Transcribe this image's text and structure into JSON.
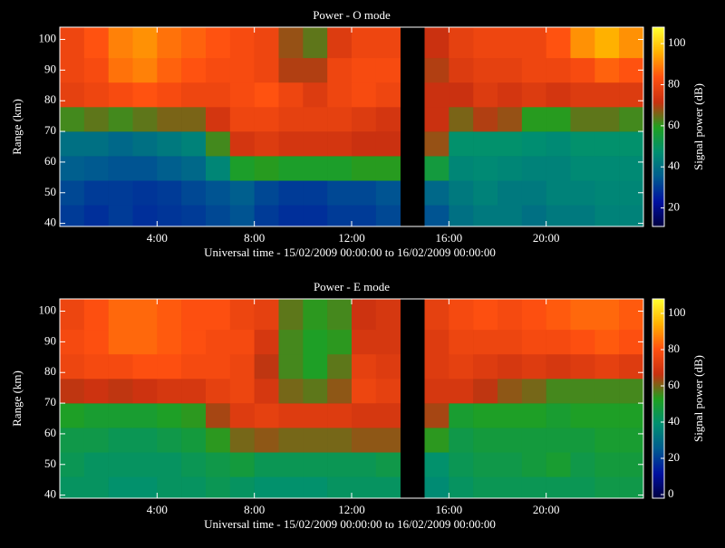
{
  "chart_data": [
    {
      "type": "heatmap",
      "title": "Power - O mode",
      "xlabel": "Universal time - 15/02/2009 00:00:00 to 16/02/2009 00:00:00",
      "ylabel": "Range (km)",
      "colorbar_label": "Signal power (dB)",
      "x_bins": [
        0,
        1,
        2,
        3,
        4,
        5,
        6,
        7,
        8,
        9,
        10,
        11,
        12,
        13,
        14,
        15,
        16,
        17,
        18,
        19,
        20,
        21,
        22,
        23,
        24
      ],
      "y_bins": [
        39,
        46,
        54,
        62,
        70,
        78,
        86,
        94,
        104
      ],
      "values": [
        [
          30,
          28,
          30,
          28,
          29,
          30,
          32,
          34,
          30,
          28,
          28,
          30,
          30,
          32,
          null,
          34,
          40,
          42,
          42,
          40,
          42,
          42,
          44,
          44
        ],
        [
          32,
          30,
          30,
          29,
          30,
          32,
          34,
          36,
          32,
          30,
          30,
          32,
          32,
          34,
          null,
          38,
          42,
          44,
          42,
          42,
          44,
          44,
          45,
          45
        ],
        [
          36,
          35,
          34,
          34,
          36,
          38,
          45,
          58,
          60,
          58,
          58,
          58,
          60,
          60,
          null,
          55,
          45,
          46,
          45,
          44,
          44,
          46,
          46,
          46
        ],
        [
          40,
          40,
          38,
          40,
          42,
          44,
          62,
          74,
          76,
          74,
          74,
          74,
          72,
          72,
          null,
          68,
          48,
          48,
          48,
          47,
          46,
          48,
          48,
          48
        ],
        [
          62,
          64,
          62,
          64,
          66,
          66,
          74,
          80,
          80,
          78,
          78,
          78,
          76,
          74,
          null,
          72,
          66,
          70,
          68,
          60,
          60,
          64,
          64,
          62
        ],
        [
          78,
          80,
          82,
          84,
          82,
          80,
          80,
          82,
          84,
          80,
          76,
          80,
          82,
          80,
          null,
          72,
          72,
          76,
          74,
          76,
          74,
          76,
          76,
          76
        ],
        [
          80,
          82,
          88,
          90,
          86,
          84,
          82,
          82,
          80,
          70,
          70,
          80,
          82,
          82,
          null,
          70,
          76,
          78,
          78,
          80,
          80,
          82,
          86,
          84
        ],
        [
          80,
          84,
          90,
          92,
          88,
          86,
          84,
          82,
          80,
          68,
          64,
          76,
          80,
          80,
          null,
          72,
          78,
          80,
          80,
          80,
          84,
          92,
          96,
          92
        ]
      ],
      "xlim": [
        0,
        24
      ],
      "ylim": [
        39,
        104
      ],
      "xticks": [
        {
          "value": 4,
          "label": "4:00"
        },
        {
          "value": 8,
          "label": "8:00"
        },
        {
          "value": 12,
          "label": "12:00"
        },
        {
          "value": 16,
          "label": "16:00"
        },
        {
          "value": 20,
          "label": "20:00"
        }
      ],
      "yticks": [
        40,
        50,
        60,
        70,
        80,
        90,
        100
      ],
      "clim": [
        11,
        108
      ],
      "cticks": [
        20,
        40,
        60,
        80,
        100
      ],
      "colormap": [
        "#000040",
        "#0010a0",
        "#005c90",
        "#009070",
        "#20a020",
        "#c83010",
        "#ff5010",
        "#ffb000",
        "#ffff30"
      ]
    },
    {
      "type": "heatmap",
      "title": "Power - E mode",
      "xlabel": "Universal time - 15/02/2009 00:00:00 to 16/02/2009 00:00:00",
      "ylabel": "Range (km)",
      "colorbar_label": "Signal power (dB)",
      "x_bins": [
        0,
        1,
        2,
        3,
        4,
        5,
        6,
        7,
        8,
        9,
        10,
        11,
        12,
        13,
        14,
        15,
        16,
        17,
        18,
        19,
        20,
        21,
        22,
        23,
        24
      ],
      "y_bins": [
        39,
        46,
        54,
        62,
        70,
        78,
        86,
        94,
        104
      ],
      "values": [
        [
          42,
          42,
          40,
          40,
          42,
          42,
          44,
          42,
          40,
          40,
          40,
          42,
          42,
          42,
          null,
          38,
          42,
          44,
          44,
          44,
          44,
          44,
          46,
          46
        ],
        [
          44,
          42,
          42,
          42,
          42,
          44,
          46,
          48,
          44,
          44,
          44,
          44,
          44,
          46,
          null,
          40,
          44,
          46,
          46,
          48,
          50,
          46,
          48,
          48
        ],
        [
          46,
          46,
          44,
          44,
          46,
          48,
          54,
          60,
          62,
          60,
          60,
          60,
          62,
          62,
          null,
          54,
          46,
          48,
          48,
          48,
          48,
          48,
          50,
          50
        ],
        [
          52,
          50,
          50,
          50,
          52,
          54,
          64,
          72,
          74,
          72,
          72,
          72,
          70,
          70,
          null,
          64,
          50,
          52,
          52,
          52,
          50,
          52,
          52,
          52
        ],
        [
          66,
          68,
          66,
          68,
          70,
          70,
          74,
          76,
          70,
          60,
          58,
          62,
          76,
          74,
          null,
          70,
          70,
          66,
          62,
          60,
          56,
          56,
          56,
          56
        ],
        [
          76,
          78,
          78,
          80,
          80,
          78,
          78,
          76,
          66,
          56,
          52,
          58,
          74,
          72,
          null,
          72,
          74,
          72,
          70,
          72,
          70,
          72,
          74,
          72
        ],
        [
          78,
          80,
          84,
          84,
          82,
          80,
          78,
          78,
          70,
          56,
          52,
          54,
          70,
          70,
          null,
          72,
          76,
          76,
          76,
          78,
          78,
          80,
          82,
          80
        ],
        [
          76,
          80,
          84,
          84,
          82,
          80,
          80,
          76,
          74,
          58,
          54,
          56,
          68,
          70,
          null,
          74,
          78,
          80,
          78,
          80,
          82,
          84,
          84,
          82
        ]
      ],
      "xlim": [
        0,
        24
      ],
      "ylim": [
        39,
        104
      ],
      "xticks": [
        {
          "value": 4,
          "label": "4:00"
        },
        {
          "value": 8,
          "label": "8:00"
        },
        {
          "value": 12,
          "label": "12:00"
        },
        {
          "value": 16,
          "label": "16:00"
        },
        {
          "value": 20,
          "label": "20:00"
        }
      ],
      "yticks": [
        40,
        50,
        60,
        70,
        80,
        90,
        100
      ],
      "clim": [
        -2,
        108
      ],
      "cticks": [
        0,
        20,
        40,
        60,
        80,
        100
      ],
      "colormap": [
        "#000040",
        "#0010a0",
        "#005c90",
        "#009070",
        "#20a020",
        "#c83010",
        "#ff5010",
        "#ffb000",
        "#ffff30"
      ]
    }
  ]
}
